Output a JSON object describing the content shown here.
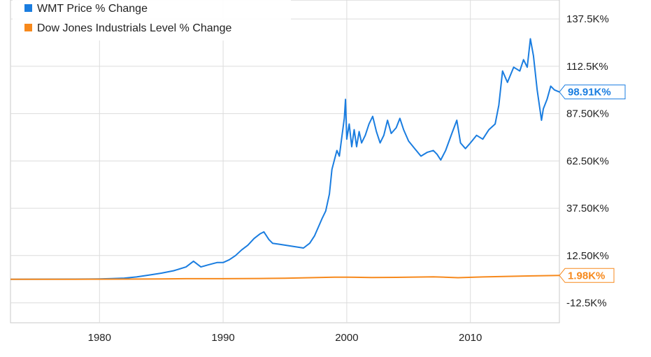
{
  "chart_data": {
    "type": "line",
    "title": "",
    "xlabel": "",
    "ylabel": "",
    "x_ticks": [
      "1980",
      "1990",
      "2000",
      "2010"
    ],
    "y_ticks": [
      {
        "value": 137500,
        "label": "137.5K%"
      },
      {
        "value": 112500,
        "label": "112.5K%"
      },
      {
        "value": 87500,
        "label": "87.50K%"
      },
      {
        "value": 62500,
        "label": "62.50K%"
      },
      {
        "value": 37500,
        "label": "37.50K%"
      },
      {
        "value": 12500,
        "label": "12.50K%"
      },
      {
        "value": -12500,
        "label": "-12.5K%"
      }
    ],
    "xlim": [
      1972.8,
      2017.2
    ],
    "ylim": [
      -23000,
      147500
    ],
    "grid": true,
    "legend_position": "top-left",
    "series": [
      {
        "name": "WMT Price % Change",
        "color": "#1a7de0",
        "end_label": "98.91K%",
        "points": [
          [
            1972.8,
            0
          ],
          [
            1975,
            40
          ],
          [
            1978,
            80
          ],
          [
            1980,
            180
          ],
          [
            1981,
            350
          ],
          [
            1982,
            600
          ],
          [
            1983,
            1200
          ],
          [
            1984,
            2200
          ],
          [
            1985,
            3200
          ],
          [
            1986,
            4500
          ],
          [
            1987,
            6500
          ],
          [
            1987.6,
            9500
          ],
          [
            1988.2,
            6500
          ],
          [
            1988.8,
            7600
          ],
          [
            1989.5,
            8800
          ],
          [
            1990,
            8800
          ],
          [
            1990.5,
            10300
          ],
          [
            1991,
            12500
          ],
          [
            1991.5,
            15500
          ],
          [
            1992,
            18000
          ],
          [
            1992.5,
            21500
          ],
          [
            1993,
            24000
          ],
          [
            1993.3,
            25000
          ],
          [
            1993.7,
            21000
          ],
          [
            1994,
            19000
          ],
          [
            1994.5,
            18500
          ],
          [
            1995,
            18000
          ],
          [
            1995.5,
            17500
          ],
          [
            1996,
            17000
          ],
          [
            1996.5,
            16500
          ],
          [
            1997,
            19000
          ],
          [
            1997.4,
            23000
          ],
          [
            1997.8,
            29000
          ],
          [
            1998,
            32000
          ],
          [
            1998.3,
            36000
          ],
          [
            1998.6,
            45000
          ],
          [
            1998.8,
            58000
          ],
          [
            1999,
            63000
          ],
          [
            1999.2,
            68000
          ],
          [
            1999.4,
            65000
          ],
          [
            1999.6,
            75000
          ],
          [
            1999.8,
            85000
          ],
          [
            1999.9,
            95000
          ],
          [
            2000,
            74000
          ],
          [
            2000.2,
            82000
          ],
          [
            2000.4,
            70000
          ],
          [
            2000.6,
            79000
          ],
          [
            2000.8,
            70000
          ],
          [
            2001,
            78000
          ],
          [
            2001.2,
            72000
          ],
          [
            2001.5,
            76000
          ],
          [
            2001.8,
            82000
          ],
          [
            2002.1,
            86000
          ],
          [
            2002.4,
            78000
          ],
          [
            2002.7,
            72000
          ],
          [
            2003,
            76000
          ],
          [
            2003.3,
            84000
          ],
          [
            2003.6,
            77000
          ],
          [
            2004,
            80000
          ],
          [
            2004.3,
            85000
          ],
          [
            2004.6,
            79000
          ],
          [
            2005,
            73000
          ],
          [
            2005.5,
            69000
          ],
          [
            2006,
            65000
          ],
          [
            2006.5,
            67000
          ],
          [
            2007,
            68000
          ],
          [
            2007.3,
            66000
          ],
          [
            2007.6,
            63000
          ],
          [
            2008,
            68000
          ],
          [
            2008.5,
            77000
          ],
          [
            2008.9,
            84000
          ],
          [
            2009.2,
            72000
          ],
          [
            2009.6,
            69000
          ],
          [
            2010,
            72000
          ],
          [
            2010.5,
            76000
          ],
          [
            2011,
            74000
          ],
          [
            2011.5,
            79000
          ],
          [
            2012,
            82000
          ],
          [
            2012.3,
            92000
          ],
          [
            2012.6,
            110000
          ],
          [
            2013,
            104000
          ],
          [
            2013.5,
            112000
          ],
          [
            2014,
            110000
          ],
          [
            2014.3,
            116000
          ],
          [
            2014.6,
            112000
          ],
          [
            2014.85,
            127000
          ],
          [
            2015.1,
            118000
          ],
          [
            2015.4,
            100000
          ],
          [
            2015.6,
            91000
          ],
          [
            2015.75,
            84000
          ],
          [
            2015.9,
            90000
          ],
          [
            2016.2,
            95000
          ],
          [
            2016.5,
            102000
          ],
          [
            2016.8,
            100000
          ],
          [
            2017.2,
            98910
          ]
        ]
      },
      {
        "name": "Dow Jones Industrials Level % Change",
        "color": "#f7891c",
        "end_label": "1.98K%",
        "points": [
          [
            1972.8,
            0
          ],
          [
            1975,
            -10
          ],
          [
            1978,
            0
          ],
          [
            1980,
            30
          ],
          [
            1982,
            60
          ],
          [
            1985,
            150
          ],
          [
            1987,
            280
          ],
          [
            1990,
            300
          ],
          [
            1993,
            400
          ],
          [
            1995,
            520
          ],
          [
            1997,
            800
          ],
          [
            1999,
            1100
          ],
          [
            2000,
            1100
          ],
          [
            2002,
            900
          ],
          [
            2004,
            1000
          ],
          [
            2007,
            1300
          ],
          [
            2009,
            800
          ],
          [
            2011,
            1200
          ],
          [
            2013,
            1500
          ],
          [
            2015,
            1750
          ],
          [
            2017.2,
            1980
          ]
        ]
      }
    ]
  }
}
